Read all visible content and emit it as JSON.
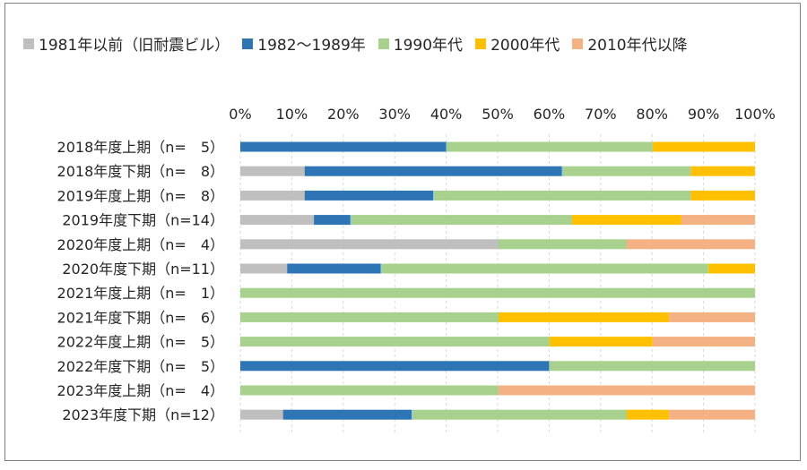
{
  "chart_data": {
    "type": "bar",
    "orientation": "horizontal",
    "stacked": "percent",
    "title": "",
    "xlabel": "",
    "ylabel": "",
    "xlim": [
      0,
      100
    ],
    "x_ticks": [
      "0%",
      "10%",
      "20%",
      "30%",
      "40%",
      "50%",
      "60%",
      "70%",
      "80%",
      "90%",
      "100%"
    ],
    "grid": true,
    "legend_position": "top",
    "categories": [
      "2018年度上期（n=　5）",
      "2018年度下期（n=　8）",
      "2019年度上期（n=　8）",
      "2019年度下期（n=14）",
      "2020年度上期（n=　4）",
      "2020年度下期（n=11）",
      "2021年度上期（n=　1）",
      "2021年度下期（n=　6）",
      "2022年度上期（n=　5）",
      "2022年度下期（n=　5）",
      "2023年度上期（n=　4）",
      "2023年度下期（n=12）"
    ],
    "series": [
      {
        "name": "1981年以前（旧耐震ビル）",
        "color": "#bfbfbf",
        "values": [
          0,
          12.5,
          12.5,
          14.3,
          50,
          9.1,
          0,
          0,
          0,
          0,
          0,
          8.3
        ]
      },
      {
        "name": "1982～1989年",
        "color": "#2e75b6",
        "values": [
          40,
          50,
          25,
          7.1,
          0,
          18.2,
          0,
          0,
          0,
          60,
          0,
          25
        ]
      },
      {
        "name": "1990年代",
        "color": "#a9d18e",
        "values": [
          40,
          25,
          50,
          42.9,
          25,
          63.6,
          100,
          50,
          60,
          40,
          50,
          41.7
        ]
      },
      {
        "name": "2000年代",
        "color": "#ffc000",
        "values": [
          20,
          12.5,
          12.5,
          21.4,
          0,
          9.1,
          0,
          33.3,
          20,
          0,
          0,
          8.3
        ]
      },
      {
        "name": "2010年代以降",
        "color": "#f4b183",
        "values": [
          0,
          0,
          0,
          14.3,
          25,
          0,
          0,
          16.7,
          20,
          0,
          50,
          16.7
        ]
      }
    ]
  }
}
